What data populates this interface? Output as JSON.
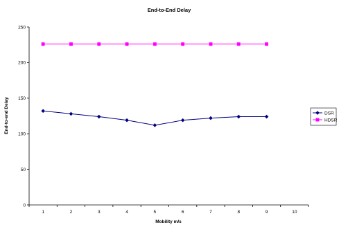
{
  "chart_data": {
    "type": "line",
    "title": "End-to-End Delay",
    "xlabel": "Mobility m/s",
    "ylabel": "End-to-end Delay",
    "x_categories": [
      "1",
      "2",
      "3",
      "4",
      "5",
      "6",
      "7",
      "8",
      "9",
      "10"
    ],
    "y_ticks": [
      "0",
      "50",
      "100",
      "150",
      "200",
      "250"
    ],
    "ylim": [
      0,
      250
    ],
    "grid": false,
    "legend_position": "right",
    "series": [
      {
        "name": "DSR",
        "color": "#000080",
        "marker": "diamond",
        "values": [
          132,
          128,
          124,
          119,
          112,
          119,
          122,
          124,
          124,
          null
        ]
      },
      {
        "name": "HDSR",
        "color": "#ff00ff",
        "marker": "square",
        "values": [
          226,
          226,
          226,
          226,
          226,
          226,
          226,
          226,
          226,
          null
        ]
      }
    ]
  }
}
